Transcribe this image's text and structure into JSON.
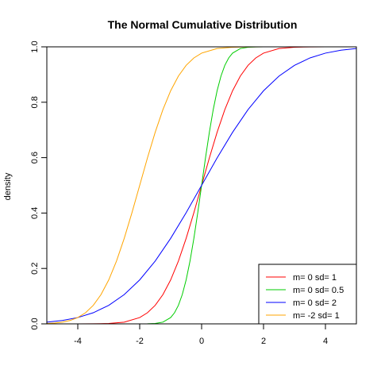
{
  "chart_data": {
    "type": "line",
    "title": "The Normal Cumulative Distribution",
    "xlabel": "",
    "ylabel": "density",
    "xlim": [
      -5,
      5
    ],
    "ylim": [
      0,
      1
    ],
    "x_ticks": [
      -4,
      -2,
      0,
      2,
      4
    ],
    "y_ticks": [
      0.0,
      0.2,
      0.4,
      0.6,
      0.8,
      1.0
    ],
    "x_tick_labels": [
      "-4",
      "-2",
      "0",
      "2",
      "4"
    ],
    "y_tick_labels": [
      "0.0",
      "0.2",
      "0.4",
      "0.6",
      "0.8",
      "1.0"
    ],
    "legend_position": "bottom-right",
    "grid": false,
    "series": [
      {
        "name": "m= 0  sd= 1",
        "color": "#ff0000",
        "x": [
          -5,
          -4.5,
          -4,
          -3.5,
          -3,
          -2.5,
          -2,
          -1.75,
          -1.5,
          -1.25,
          -1,
          -0.75,
          -0.5,
          -0.25,
          0,
          0.25,
          0.5,
          0.75,
          1,
          1.25,
          1.5,
          1.75,
          2,
          2.5,
          3,
          3.5,
          4,
          4.5,
          5
        ],
        "y": [
          3e-07,
          3.4e-06,
          3.17e-05,
          0.000233,
          0.00135,
          0.00621,
          0.02275,
          0.04006,
          0.06681,
          0.10565,
          0.15866,
          0.22663,
          0.30854,
          0.40129,
          0.5,
          0.59871,
          0.69146,
          0.77337,
          0.84134,
          0.89435,
          0.93319,
          0.95994,
          0.97725,
          0.99379,
          0.99865,
          0.99977,
          0.99997,
          0.999997,
          0.9999997
        ]
      },
      {
        "name": "m= 0  sd= 0.5",
        "color": "#00cd00",
        "x": [
          -5,
          -3,
          -2.5,
          -2,
          -1.75,
          -1.5,
          -1.25,
          -1,
          -0.875,
          -0.75,
          -0.625,
          -0.5,
          -0.375,
          -0.25,
          -0.125,
          0,
          0.125,
          0.25,
          0.375,
          0.5,
          0.625,
          0.75,
          0.875,
          1,
          1.25,
          1.5,
          1.75,
          2,
          2.5,
          3,
          5
        ],
        "y": [
          0,
          1e-09,
          3e-07,
          3.17e-05,
          0.000233,
          0.00135,
          0.00621,
          0.02275,
          0.04006,
          0.06681,
          0.10565,
          0.15866,
          0.22663,
          0.30854,
          0.40129,
          0.5,
          0.59871,
          0.69146,
          0.77337,
          0.84134,
          0.89435,
          0.93319,
          0.95994,
          0.97725,
          0.99379,
          0.99865,
          0.99977,
          0.99997,
          0.9999997,
          1,
          1
        ]
      },
      {
        "name": "m= 0  sd= 2",
        "color": "#0000ff",
        "x": [
          -5,
          -4.5,
          -4,
          -3.5,
          -3,
          -2.5,
          -2,
          -1.5,
          -1,
          -0.5,
          0,
          0.5,
          1,
          1.5,
          2,
          2.5,
          3,
          3.5,
          4,
          4.5,
          5
        ],
        "y": [
          0.00621,
          0.01222,
          0.02275,
          0.04006,
          0.06681,
          0.10565,
          0.15866,
          0.22663,
          0.30854,
          0.40129,
          0.5,
          0.59871,
          0.69146,
          0.77337,
          0.84134,
          0.89435,
          0.93319,
          0.95994,
          0.97725,
          0.98778,
          0.99379
        ]
      },
      {
        "name": "m= -2  sd= 1",
        "color": "#ffa500",
        "x": [
          -5,
          -4.75,
          -4.5,
          -4.25,
          -4,
          -3.75,
          -3.5,
          -3.25,
          -3,
          -2.75,
          -2.5,
          -2.25,
          -2,
          -1.75,
          -1.5,
          -1.25,
          -1,
          -0.75,
          -0.5,
          -0.25,
          0,
          0.5,
          1,
          1.5,
          2,
          2.5,
          3,
          5
        ],
        "y": [
          0.00135,
          0.00298,
          0.00621,
          0.01222,
          0.02275,
          0.04006,
          0.06681,
          0.10565,
          0.15866,
          0.22663,
          0.30854,
          0.40129,
          0.5,
          0.59871,
          0.69146,
          0.77337,
          0.84134,
          0.89435,
          0.93319,
          0.95994,
          0.97725,
          0.99379,
          0.99865,
          0.99977,
          0.99997,
          0.999997,
          0.9999997,
          1
        ]
      }
    ]
  }
}
